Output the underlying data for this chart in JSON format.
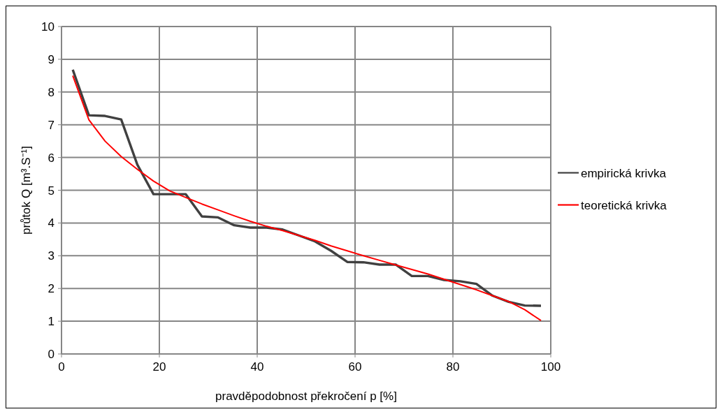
{
  "chart_data": {
    "type": "line",
    "xlabel": "pravděpodobnost překročení p [%]",
    "ylabel": "průtok Q [m³.S⁻¹]",
    "xlim": [
      0,
      100
    ],
    "xticks": [
      0,
      20,
      40,
      60,
      80,
      100
    ],
    "ylim": [
      0,
      10
    ],
    "yticks": [
      0,
      1,
      2,
      3,
      4,
      5,
      6,
      7,
      8,
      9,
      10
    ],
    "grid": true,
    "legend": "right",
    "marker": "none",
    "line_style": "solid",
    "x": [
      2.3,
      5.6,
      8.9,
      12.2,
      15.5,
      18.8,
      22.1,
      25.4,
      28.7,
      32,
      35.3,
      38.6,
      41.9,
      45.2,
      48.5,
      51.8,
      55.1,
      58.4,
      61.7,
      65,
      68.3,
      71.6,
      74.9,
      78.2,
      81.5,
      84.8,
      88.1,
      91.4,
      94.7,
      98
    ],
    "series": [
      {
        "name": "empirická krivka",
        "color": "#404040",
        "values": [
          8.68,
          7.29,
          7.27,
          7.16,
          5.78,
          4.88,
          4.88,
          4.88,
          4.2,
          4.17,
          3.93,
          3.86,
          3.86,
          3.8,
          3.62,
          3.44,
          3.15,
          2.81,
          2.8,
          2.73,
          2.73,
          2.38,
          2.38,
          2.26,
          2.22,
          2.14,
          1.78,
          1.59,
          1.48,
          1.47
        ]
      },
      {
        "name": "teoretická krivka",
        "color": "#ff0000",
        "values": [
          8.5,
          7.15,
          6.5,
          6.03,
          5.64,
          5.28,
          4.98,
          4.78,
          4.58,
          4.4,
          4.22,
          4.05,
          3.9,
          3.77,
          3.62,
          3.47,
          3.3,
          3.15,
          3.0,
          2.86,
          2.72,
          2.58,
          2.44,
          2.28,
          2.12,
          1.96,
          1.78,
          1.6,
          1.35,
          1.02
        ]
      }
    ]
  }
}
